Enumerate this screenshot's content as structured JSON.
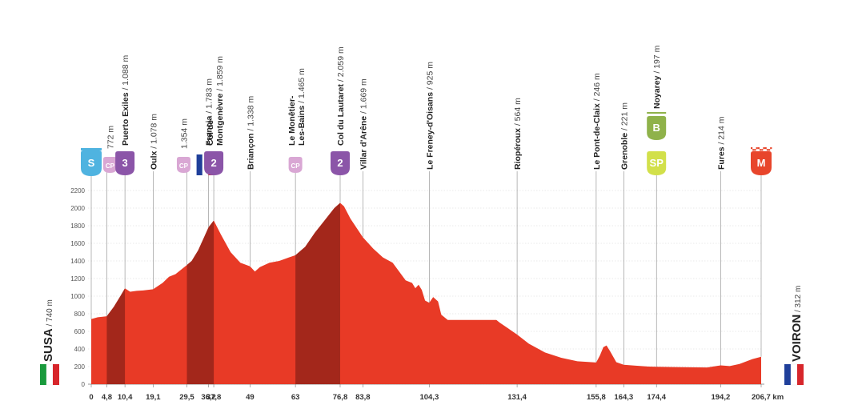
{
  "chart_data": {
    "type": "area",
    "unit_km": "km",
    "ylim": [
      0,
      2200
    ],
    "xlim": [
      0,
      206.7
    ],
    "y_ticks": [
      "0",
      "200",
      "400",
      "600",
      "800",
      "1000",
      "1200",
      "1400",
      "1600",
      "1800",
      "2000",
      "2200"
    ],
    "km_labels": [
      {
        "km": 0,
        "label": "0"
      },
      {
        "km": 4.8,
        "label": "4,8"
      },
      {
        "km": 10.4,
        "label": "10,4"
      },
      {
        "km": 19.1,
        "label": "19,1"
      },
      {
        "km": 29.5,
        "label": "29,5"
      },
      {
        "km": 36.2,
        "label": "36,2"
      },
      {
        "km": 37.8,
        "label": "37,8"
      },
      {
        "km": 49,
        "label": "49"
      },
      {
        "km": 63,
        "label": "63"
      },
      {
        "km": 76.8,
        "label": "76,8"
      },
      {
        "km": 83.8,
        "label": "83,8"
      },
      {
        "km": 104.3,
        "label": "104,3"
      },
      {
        "km": 131.4,
        "label": "131,4"
      },
      {
        "km": 155.8,
        "label": "155,8"
      },
      {
        "km": 164.3,
        "label": "164,3"
      },
      {
        "km": 174.4,
        "label": "174,4"
      },
      {
        "km": 194.2,
        "label": "194,2"
      },
      {
        "km": 206.7,
        "label": "206,7 km"
      }
    ],
    "profile": [
      [
        0,
        740
      ],
      [
        2,
        760
      ],
      [
        4.8,
        772
      ],
      [
        7,
        880
      ],
      [
        9,
        1000
      ],
      [
        10.4,
        1088
      ],
      [
        12,
        1050
      ],
      [
        14,
        1060
      ],
      [
        16,
        1065
      ],
      [
        19.1,
        1078
      ],
      [
        22,
        1150
      ],
      [
        24,
        1220
      ],
      [
        26,
        1250
      ],
      [
        29.5,
        1354
      ],
      [
        31,
        1400
      ],
      [
        33,
        1520
      ],
      [
        36.2,
        1783
      ],
      [
        37.8,
        1859
      ],
      [
        40,
        1700
      ],
      [
        43,
        1500
      ],
      [
        46,
        1380
      ],
      [
        49,
        1338
      ],
      [
        50.5,
        1280
      ],
      [
        52,
        1330
      ],
      [
        55,
        1380
      ],
      [
        58,
        1400
      ],
      [
        61,
        1440
      ],
      [
        63,
        1465
      ],
      [
        66,
        1560
      ],
      [
        69,
        1720
      ],
      [
        72,
        1860
      ],
      [
        75,
        2000
      ],
      [
        76.8,
        2059
      ],
      [
        78,
        2020
      ],
      [
        80,
        1880
      ],
      [
        83.8,
        1669
      ],
      [
        87,
        1540
      ],
      [
        90,
        1440
      ],
      [
        93,
        1380
      ],
      [
        95,
        1280
      ],
      [
        97,
        1180
      ],
      [
        99,
        1150
      ],
      [
        100,
        1090
      ],
      [
        101,
        1130
      ],
      [
        102,
        1070
      ],
      [
        103,
        950
      ],
      [
        104.3,
        925
      ],
      [
        105.5,
        990
      ],
      [
        107,
        940
      ],
      [
        108,
        790
      ],
      [
        110,
        730
      ],
      [
        115,
        730
      ],
      [
        120,
        730
      ],
      [
        125,
        730
      ],
      [
        126,
        700
      ],
      [
        128,
        650
      ],
      [
        131.4,
        564
      ],
      [
        135,
        460
      ],
      [
        140,
        360
      ],
      [
        145,
        300
      ],
      [
        150,
        260
      ],
      [
        155.8,
        246
      ],
      [
        157,
        330
      ],
      [
        158,
        420
      ],
      [
        159,
        440
      ],
      [
        160,
        380
      ],
      [
        162,
        250
      ],
      [
        164.3,
        221
      ],
      [
        168,
        210
      ],
      [
        172,
        200
      ],
      [
        174.4,
        197
      ],
      [
        180,
        195
      ],
      [
        185,
        192
      ],
      [
        190,
        190
      ],
      [
        194.2,
        214
      ],
      [
        197,
        205
      ],
      [
        200,
        230
      ],
      [
        204,
        285
      ],
      [
        206.7,
        312
      ]
    ],
    "climb_segments": [
      [
        4.8,
        10.4
      ],
      [
        29.5,
        37.8
      ],
      [
        63,
        76.8
      ]
    ],
    "waypoints": [
      {
        "km": 4.8,
        "name": "",
        "alt": "772 m",
        "icon": "cp"
      },
      {
        "km": 10.4,
        "name": "Puerto Exiles",
        "alt": " / 1.088 m",
        "icon": "cat3"
      },
      {
        "km": 19.1,
        "name": "Oulx",
        "alt": " / 1.078 m",
        "icon": ""
      },
      {
        "km": 29.5,
        "name": "",
        "alt": "1.354 m",
        "icon": "cp"
      },
      {
        "km": 36.2,
        "name": "Francia",
        "alt": " / 1.783 m",
        "icon": "flag-fr"
      },
      {
        "km": 37.8,
        "name": "Col de",
        "name2": "Montgenèvre",
        "alt": " / 1.859 m",
        "icon": "cat2"
      },
      {
        "km": 49,
        "name": "Briançon",
        "alt": " / 1.338 m",
        "icon": ""
      },
      {
        "km": 63,
        "name": "Le Monêtier-",
        "name2": "Les-Bains",
        "alt": " / 1.465 m",
        "icon": "cp"
      },
      {
        "km": 76.8,
        "name": "Col du Lautaret",
        "alt": " / 2.059 m",
        "icon": "cat2"
      },
      {
        "km": 83.8,
        "name": "Villar d'Arêne",
        "alt": " / 1.669 m",
        "icon": ""
      },
      {
        "km": 104.3,
        "name": "Le Freney-d'Oisans",
        "alt": " / 925 m",
        "icon": ""
      },
      {
        "km": 131.4,
        "name": "Riopéroux",
        "alt": " / 564 m",
        "icon": ""
      },
      {
        "km": 155.8,
        "name": "Le Pont-de-Claix",
        "alt": " / 246 m",
        "icon": ""
      },
      {
        "km": 164.3,
        "name": "Grenoble",
        "alt": " / 221 m",
        "icon": ""
      },
      {
        "km": 174.4,
        "name": "Noyarey",
        "alt": " / 197 m",
        "icon": "b-sp"
      },
      {
        "km": 194.2,
        "name": "Fures",
        "alt": " / 214 m",
        "icon": ""
      }
    ],
    "start": {
      "name": "SUSA",
      "alt": " / 740 m",
      "icon_label": "S"
    },
    "finish": {
      "name": "VOIRON",
      "alt": " / 312 m",
      "icon_label": "M"
    },
    "icon_labels": {
      "cp": "CP",
      "cat3": "3",
      "cat2": "2",
      "b": "B",
      "sp": "SP"
    }
  },
  "colors": {
    "profile_fill": "#e83a26",
    "climb_fill": "#a3271b",
    "start_icon": "#4fb3e0",
    "category_icon": "#8b55a8",
    "cp_icon": "#d9a7d4",
    "bonus_icon": "#8fb24a",
    "sprint_icon": "#d2e04a",
    "finish_icon": "#e8452b",
    "flag_blue": "#1f3f9a",
    "flag_red": "#d7262b",
    "flag_green": "#199a3c"
  }
}
